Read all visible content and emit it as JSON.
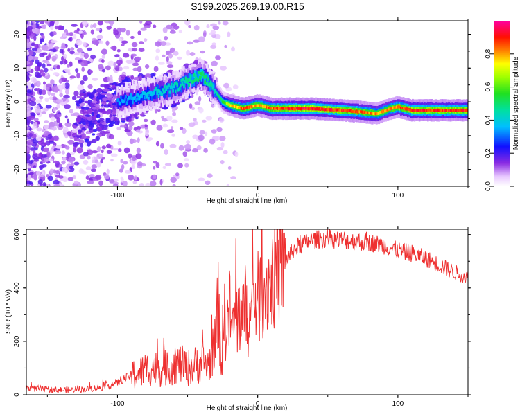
{
  "title": "S199.2025.269.19.00.R15",
  "colors": {
    "snr_line": "#ee3030",
    "spec_background": "#ffffff",
    "spec_weak": "#c8b4f0",
    "spec_mid": "#7a1ee6",
    "spec_strong": "#ff1010"
  },
  "chart_data": [
    {
      "type": "heatmap",
      "title": "S199.2025.269.19.00.R15",
      "xlabel": "Height of straight line (km)",
      "ylabel": "Frequency (Hz)",
      "xlim": [
        -165,
        150
      ],
      "ylim": [
        -25,
        24
      ],
      "xticks": [
        -100,
        0,
        100
      ],
      "yticks": [
        -20,
        -10,
        0,
        10,
        20
      ],
      "colorbar": {
        "label": "Normalized spectral amplitude",
        "range": [
          0,
          1
        ],
        "ticks": [
          0.0,
          0.2,
          0.4,
          0.6,
          0.8
        ],
        "colormap": "rainbow (white → violet → blue → cyan → green → yellow → red → magenta)"
      },
      "ridge": {
        "x": [
          -120,
          -100,
          -80,
          -60,
          -50,
          -40,
          -35,
          -30,
          -25,
          -20,
          -10,
          0,
          10,
          20,
          40,
          60,
          75,
          85,
          95,
          100,
          110,
          130,
          150
        ],
        "freq": [
          -5,
          0,
          2,
          4,
          6,
          8,
          6,
          3,
          0,
          -1,
          -2,
          -1,
          -2,
          -2,
          -2,
          -2.5,
          -3,
          -3.5,
          -2,
          -1.5,
          -2.5,
          -2.5,
          -2.5
        ],
        "amplitude": [
          0.2,
          0.35,
          0.4,
          0.45,
          0.5,
          0.55,
          0.5,
          0.45,
          0.55,
          0.8,
          0.9,
          0.85,
          0.9,
          0.95,
          1.0,
          0.95,
          0.9,
          0.85,
          0.85,
          0.9,
          0.95,
          0.95,
          0.95
        ]
      }
    },
    {
      "type": "line",
      "title": "",
      "xlabel": "Height of straight line (km)",
      "ylabel": "SNR (10 * v/v)",
      "xlim": [
        -165,
        150
      ],
      "ylim": [
        0,
        620
      ],
      "xticks": [
        -100,
        0,
        100
      ],
      "yticks": [
        0,
        200,
        400,
        600
      ],
      "series": [
        {
          "name": "SNR",
          "x": [
            -165,
            -150,
            -140,
            -130,
            -120,
            -110,
            -100,
            -95,
            -90,
            -85,
            -80,
            -75,
            -70,
            -65,
            -60,
            -55,
            -50,
            -45,
            -40,
            -35,
            -30,
            -28,
            -26,
            -24,
            -22,
            -20,
            -18,
            -16,
            -14,
            -12,
            -10,
            -8,
            -6,
            -4,
            -2,
            0,
            5,
            10,
            15,
            20,
            25,
            30,
            40,
            50,
            60,
            70,
            80,
            90,
            95,
            100,
            110,
            120,
            130,
            140,
            150
          ],
          "y": [
            25,
            20,
            18,
            20,
            22,
            30,
            45,
            60,
            75,
            80,
            95,
            100,
            95,
            100,
            110,
            115,
            100,
            110,
            120,
            110,
            200,
            350,
            120,
            300,
            250,
            320,
            230,
            300,
            280,
            330,
            300,
            350,
            250,
            320,
            380,
            360,
            400,
            430,
            460,
            500,
            540,
            560,
            580,
            585,
            580,
            575,
            570,
            560,
            550,
            540,
            530,
            510,
            485,
            460,
            440
          ]
        }
      ]
    }
  ]
}
